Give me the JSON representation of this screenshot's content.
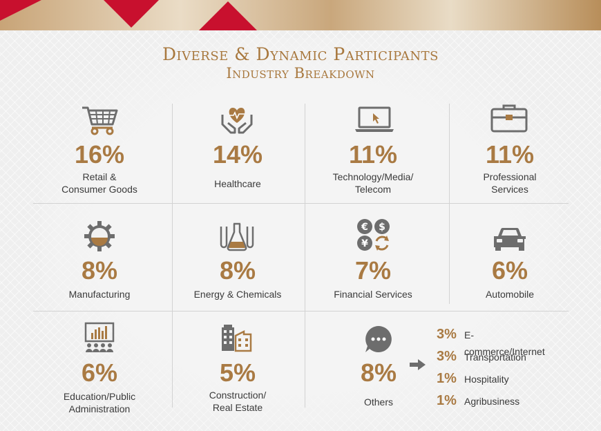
{
  "header": {
    "title_line1": "Diverse & Dynamic Participants",
    "title_line2": "Industry Breakdown"
  },
  "colors": {
    "gold": "#a97a43",
    "icon_gray": "#6d6d6d",
    "red": "#c8102e"
  },
  "industries": [
    {
      "pct": "16%",
      "line1": "Retail &",
      "line2": "Consumer Goods",
      "icon": "shopping-cart-icon"
    },
    {
      "pct": "14%",
      "line1": "Healthcare",
      "line2": "",
      "icon": "heart-hands-icon"
    },
    {
      "pct": "11%",
      "line1": "Technology/Media/",
      "line2": "Telecom",
      "icon": "laptop-icon"
    },
    {
      "pct": "11%",
      "line1": "Professional",
      "line2": "Services",
      "icon": "briefcase-icon"
    },
    {
      "pct": "8%",
      "line1": "Manufacturing",
      "line2": "",
      "icon": "gear-icon"
    },
    {
      "pct": "8%",
      "line1": "Energy & Chemicals",
      "line2": "",
      "icon": "flask-icon"
    },
    {
      "pct": "7%",
      "line1": "Financial Services",
      "line2": "",
      "icon": "currency-icon"
    },
    {
      "pct": "6%",
      "line1": "Automobile",
      "line2": "",
      "icon": "car-icon"
    },
    {
      "pct": "6%",
      "line1": "Education/Public",
      "line2": "Administration",
      "icon": "presentation-icon"
    },
    {
      "pct": "5%",
      "line1": "Construction/",
      "line2": "Real Estate",
      "icon": "buildings-icon"
    }
  ],
  "others": {
    "pct": "8%",
    "label": "Others",
    "icon": "chat-bubble-icon",
    "breakdown": [
      {
        "pct": "3%",
        "label": "E-commerce/Internet"
      },
      {
        "pct": "3%",
        "label": "Transportation"
      },
      {
        "pct": "1%",
        "label": "Hospitality"
      },
      {
        "pct": "1%",
        "label": "Agribusiness"
      }
    ]
  }
}
